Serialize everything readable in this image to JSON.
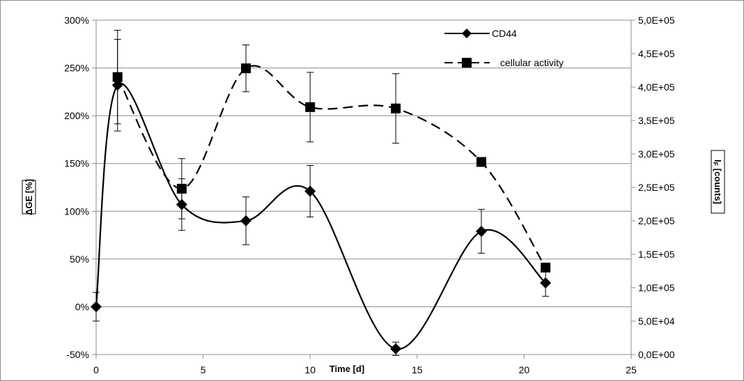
{
  "chart_data": {
    "type": "line",
    "title": "",
    "xlabel": "Time [d]",
    "ylabel": "ΔGE [%]",
    "y2label": "I",
    "y2label_sub": "F",
    "y2label_rest": " [counts]",
    "xlim": [
      0,
      25
    ],
    "ylim": [
      -50,
      300
    ],
    "y2lim": [
      0,
      500000
    ],
    "x_ticks": [
      0,
      5,
      10,
      15,
      20,
      25
    ],
    "x_tick_labels": [
      "0",
      "5",
      "10",
      "15",
      "20",
      "25"
    ],
    "y_ticks": [
      -50,
      0,
      50,
      100,
      150,
      200,
      250,
      300
    ],
    "y_tick_labels": [
      "-50%",
      "0%",
      "50%",
      "100%",
      "150%",
      "200%",
      "250%",
      "300%"
    ],
    "y2_ticks": [
      0,
      50000,
      100000,
      150000,
      200000,
      250000,
      300000,
      350000,
      400000,
      450000,
      500000
    ],
    "y2_tick_labels": [
      "0,0E+00",
      "5,0E+04",
      "1,0E+05",
      "1,5E+05",
      "2,0E+05",
      "2,5E+05",
      "3,0E+05",
      "3,5E+05",
      "4,0E+05",
      "4,5E+05",
      "5,0E+05"
    ],
    "grid": "horizontal",
    "legend_position": "top-right",
    "series": [
      {
        "name": "CD44",
        "axis": "left",
        "line_style": "solid",
        "marker": "diamond",
        "color": "#000000",
        "x": [
          0,
          1,
          4,
          7,
          10,
          14,
          18,
          21
        ],
        "y": [
          0,
          232,
          107,
          90,
          121,
          -44,
          79,
          25
        ],
        "error": [
          15,
          48,
          27,
          25,
          27,
          7,
          23,
          14
        ]
      },
      {
        "name": "cellular activity",
        "axis": "right",
        "line_style": "dashed",
        "marker": "square",
        "color": "#000000",
        "x": [
          1,
          4,
          7,
          10,
          14,
          18,
          21
        ],
        "y": [
          415000,
          248000,
          428000,
          370000,
          368000,
          288000,
          130000
        ],
        "error": [
          70000,
          45000,
          35000,
          52000,
          52000,
          0,
          0
        ]
      }
    ]
  }
}
